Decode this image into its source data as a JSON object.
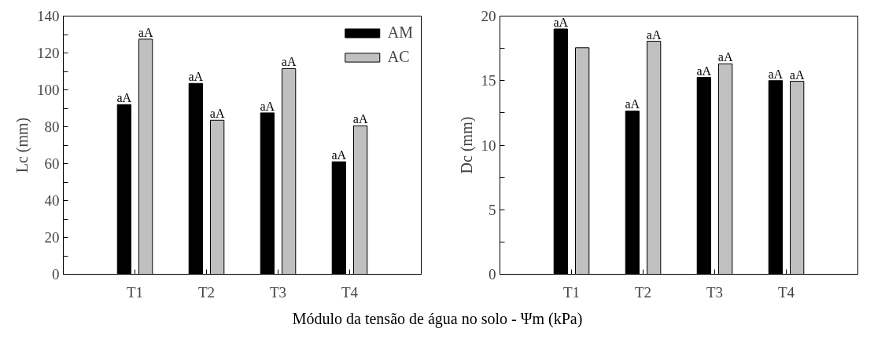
{
  "chart_data": [
    {
      "type": "bar",
      "ylabel": "Lc (mm)",
      "xlabel": "Módulo da tensão de água no solo - Ψm (kPa)",
      "categories": [
        "T1",
        "T2",
        "T3",
        "T4"
      ],
      "series": [
        {
          "name": "AM",
          "color": "#000000",
          "values": [
            92,
            103.5,
            87.5,
            61
          ],
          "value_labels": [
            "aA",
            "aA",
            "aA",
            "aA"
          ]
        },
        {
          "name": "AC",
          "color": "#c0c0c0",
          "values": [
            127.5,
            83.5,
            111.5,
            80.5
          ],
          "value_labels": [
            "aA",
            "aA",
            "aA",
            "aA"
          ]
        }
      ],
      "ylim": [
        0,
        140
      ],
      "yticks": [
        0,
        {
          "value": 10,
          "label": null
        },
        20,
        {
          "value": 30,
          "label": null
        },
        40,
        {
          "value": 50,
          "label": null
        },
        60,
        {
          "value": 70,
          "label": null
        },
        80,
        {
          "value": 90,
          "label": null
        },
        100,
        {
          "value": 110,
          "label": null
        },
        120,
        {
          "value": 130,
          "label": null
        },
        140
      ],
      "legend": "top right",
      "grid": false
    },
    {
      "type": "bar",
      "ylabel": "Dc (mm)",
      "categories": [
        "T1",
        "T2",
        "T3",
        "T4"
      ],
      "series": [
        {
          "color": "#000000",
          "values": [
            19,
            12.65,
            15.25,
            15
          ],
          "value_labels": [
            "aA",
            "aA",
            "aA",
            "aA"
          ]
        },
        {
          "color": "#c0c0c0",
          "values": [
            17.55,
            18.05,
            16.3,
            14.95
          ],
          "value_labels": [
            null,
            "aA",
            "aA",
            "aA"
          ]
        }
      ],
      "ylim": [
        0,
        20
      ],
      "yticks": [
        0,
        {
          "value": 2.5,
          "label": null
        },
        5,
        {
          "value": 7.5,
          "label": null
        },
        10,
        {
          "value": 12.5,
          "label": null
        },
        15,
        {
          "value": 17.5,
          "label": null
        },
        20
      ],
      "grid": false
    }
  ]
}
